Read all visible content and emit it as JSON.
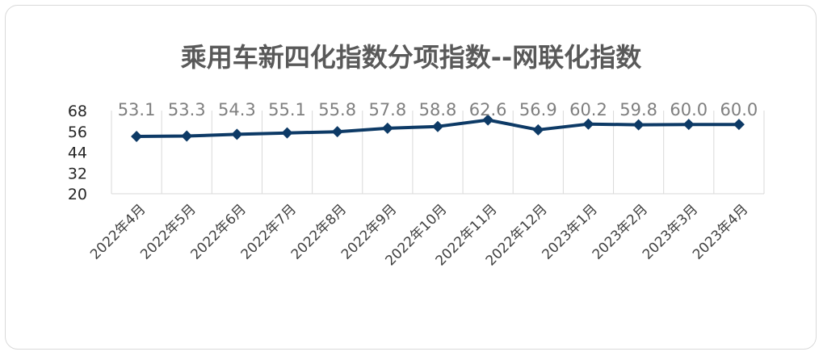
{
  "chart_data": {
    "type": "line",
    "title": "乘用车新四化指数分项指数--网联化指数",
    "xlabel": "",
    "ylabel": "",
    "categories": [
      "2022年4月",
      "2022年5月",
      "2022年6月",
      "2022年7月",
      "2022年8月",
      "2022年9月",
      "2022年10月",
      "2022年11月",
      "2022年12月",
      "2023年1月",
      "2023年2月",
      "2023年3月",
      "2023年4月"
    ],
    "series": [
      {
        "values": [
          53.1,
          53.3,
          54.3,
          55.1,
          55.8,
          57.8,
          58.8,
          62.6,
          56.9,
          60.2,
          59.8,
          60.0,
          60.0
        ]
      }
    ],
    "data_labels": [
      "53.1",
      "53.3",
      "54.3",
      "55.1",
      "55.8",
      "57.8",
      "58.8",
      "62.6",
      "56.9",
      "60.2",
      "59.8",
      "60.0",
      "60.0"
    ],
    "yticks": [
      "20",
      "32",
      "44",
      "56",
      "68"
    ],
    "ylim": [
      20,
      68
    ],
    "grid": "vertical",
    "legend": "none",
    "marker": "diamond",
    "colors": {
      "line": "#0d3a66",
      "grid": "#d9d9d9",
      "title": "#595959",
      "labels": "#7f7f7f"
    }
  }
}
